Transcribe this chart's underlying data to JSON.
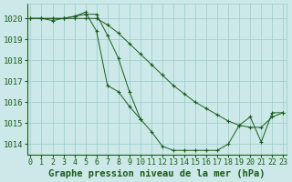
{
  "xlabel": "Graphe pression niveau de la mer (hPa)",
  "background_color": "#cce8e8",
  "grid_color": "#99cccc",
  "line_color": "#1a5c1a",
  "text_color": "#1a5c1a",
  "ylim": [
    1013.5,
    1020.7
  ],
  "xlim": [
    -0.3,
    23.3
  ],
  "yticks": [
    1014,
    1015,
    1016,
    1017,
    1018,
    1019,
    1020
  ],
  "xticks": [
    0,
    1,
    2,
    3,
    4,
    5,
    6,
    7,
    8,
    9,
    10,
    11,
    12,
    13,
    14,
    15,
    16,
    17,
    18,
    19,
    20,
    21,
    22,
    23
  ],
  "series": [
    {
      "x": [
        0,
        1,
        2,
        3,
        4,
        5,
        6,
        7,
        8,
        9,
        10,
        11,
        12,
        13,
        14,
        15,
        16,
        17,
        18,
        19,
        20,
        21,
        22,
        23
      ],
      "y": [
        1020.0,
        1020.0,
        1020.0,
        1020.0,
        1020.0,
        1020.0,
        1020.0,
        1019.7,
        1019.3,
        1018.8,
        1018.3,
        1017.8,
        1017.3,
        1016.8,
        1016.4,
        1016.0,
        1015.7,
        1015.4,
        1015.1,
        1014.9,
        1014.8,
        1014.8,
        1015.3,
        1015.5
      ]
    },
    {
      "x": [
        0,
        1,
        2,
        3,
        4,
        5,
        6,
        7,
        8,
        9,
        10,
        11,
        12,
        13,
        14,
        15,
        16,
        17,
        18,
        19,
        20,
        21,
        22,
        23
      ],
      "y": [
        1020.0,
        1020.0,
        1019.9,
        1020.0,
        1020.1,
        1020.2,
        1020.2,
        1019.2,
        1018.1,
        1016.5,
        1015.2,
        1014.6,
        1013.9,
        1013.7,
        1013.7,
        1013.7,
        1013.7,
        1013.7,
        1014.0,
        1014.9,
        1015.3,
        1014.1,
        1015.5,
        1015.5
      ]
    },
    {
      "x": [
        0,
        1,
        2,
        3,
        4,
        5,
        6,
        7,
        8,
        9,
        10
      ],
      "y": [
        1020.0,
        1020.0,
        1020.0,
        1020.0,
        1020.1,
        1020.3,
        1019.4,
        1016.8,
        1016.5,
        1015.8,
        1015.2
      ]
    }
  ],
  "fontsize_xlabel": 7.5,
  "fontsize_ytick": 6.5,
  "fontsize_xtick": 6.0
}
